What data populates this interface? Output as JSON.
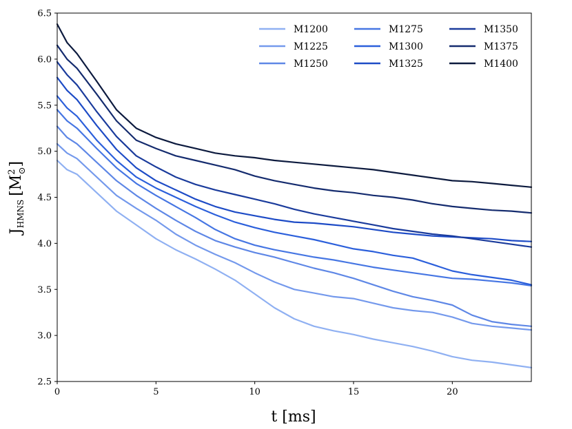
{
  "chart_data": {
    "type": "line",
    "title": "",
    "xlabel": "t [ms]",
    "ylabel_parts": {
      "main": "J",
      "sub": "HMNS",
      "unit_open": "[M",
      "unit_sup": "2",
      "unit_sub": "⊙",
      "unit_close": "]"
    },
    "xlim": [
      0,
      24
    ],
    "ylim": [
      2.5,
      6.5
    ],
    "x_ticks": [
      0,
      5,
      10,
      15,
      20
    ],
    "x_tick_labels": [
      "0",
      "5",
      "10",
      "15",
      "20"
    ],
    "y_ticks": [
      2.5,
      3.0,
      3.5,
      4.0,
      4.5,
      5.0,
      5.5,
      6.0,
      6.5
    ],
    "y_tick_labels": [
      "2.5",
      "3.0",
      "3.5",
      "4.0",
      "4.5",
      "5.0",
      "5.5",
      "6.0",
      "6.5"
    ],
    "grid": false,
    "legend_position": "top-right",
    "legend_columns": 3,
    "x": [
      0,
      0.5,
      1,
      2,
      3,
      4,
      5,
      6,
      7,
      8,
      9,
      10,
      11,
      12,
      13,
      14,
      15,
      16,
      17,
      18,
      19,
      20,
      21,
      22,
      23,
      24
    ],
    "series": [
      {
        "name": "M1200",
        "color": "#8fb0f2",
        "values": [
          4.9,
          4.8,
          4.75,
          4.55,
          4.35,
          4.2,
          4.05,
          3.93,
          3.83,
          3.72,
          3.6,
          3.45,
          3.3,
          3.18,
          3.1,
          3.05,
          3.01,
          2.96,
          2.92,
          2.88,
          2.83,
          2.77,
          2.73,
          2.71,
          2.68,
          2.65
        ]
      },
      {
        "name": "M1225",
        "color": "#7499ec",
        "values": [
          5.08,
          4.98,
          4.92,
          4.72,
          4.52,
          4.38,
          4.25,
          4.1,
          3.98,
          3.88,
          3.79,
          3.68,
          3.58,
          3.5,
          3.46,
          3.42,
          3.4,
          3.35,
          3.3,
          3.27,
          3.25,
          3.2,
          3.13,
          3.1,
          3.08,
          3.06
        ]
      },
      {
        "name": "M1250",
        "color": "#5e87e6",
        "values": [
          5.27,
          5.15,
          5.08,
          4.88,
          4.68,
          4.52,
          4.38,
          4.25,
          4.13,
          4.03,
          3.96,
          3.9,
          3.85,
          3.79,
          3.73,
          3.68,
          3.62,
          3.55,
          3.48,
          3.42,
          3.38,
          3.33,
          3.22,
          3.15,
          3.12,
          3.1
        ]
      },
      {
        "name": "M1275",
        "color": "#4676e3",
        "values": [
          5.45,
          5.33,
          5.25,
          5.03,
          4.82,
          4.65,
          4.52,
          4.4,
          4.28,
          4.15,
          4.05,
          3.98,
          3.93,
          3.89,
          3.85,
          3.82,
          3.78,
          3.74,
          3.71,
          3.68,
          3.65,
          3.62,
          3.61,
          3.59,
          3.57,
          3.54
        ]
      },
      {
        "name": "M1300",
        "color": "#2b5fdb",
        "values": [
          5.6,
          5.47,
          5.38,
          5.12,
          4.9,
          4.72,
          4.6,
          4.5,
          4.4,
          4.31,
          4.23,
          4.17,
          4.12,
          4.08,
          4.04,
          3.99,
          3.94,
          3.91,
          3.87,
          3.84,
          3.77,
          3.7,
          3.66,
          3.63,
          3.6,
          3.55
        ]
      },
      {
        "name": "M1325",
        "color": "#1d4bc6",
        "values": [
          5.8,
          5.66,
          5.56,
          5.28,
          5.02,
          4.82,
          4.68,
          4.58,
          4.48,
          4.4,
          4.34,
          4.3,
          4.26,
          4.23,
          4.22,
          4.2,
          4.18,
          4.15,
          4.12,
          4.1,
          4.08,
          4.07,
          4.06,
          4.05,
          4.03,
          4.02
        ]
      },
      {
        "name": "M1350",
        "color": "#1a3b9c",
        "values": [
          5.97,
          5.83,
          5.72,
          5.43,
          5.16,
          4.95,
          4.83,
          4.72,
          4.64,
          4.58,
          4.53,
          4.48,
          4.43,
          4.37,
          4.32,
          4.28,
          4.24,
          4.2,
          4.16,
          4.13,
          4.1,
          4.08,
          4.05,
          4.02,
          3.99,
          3.96
        ]
      },
      {
        "name": "M1375",
        "color": "#142b6e",
        "values": [
          6.15,
          6.0,
          5.9,
          5.62,
          5.33,
          5.12,
          5.03,
          4.95,
          4.9,
          4.85,
          4.8,
          4.73,
          4.68,
          4.64,
          4.6,
          4.57,
          4.55,
          4.52,
          4.5,
          4.47,
          4.43,
          4.4,
          4.38,
          4.36,
          4.35,
          4.33
        ]
      },
      {
        "name": "M1400",
        "color": "#0c1a3e",
        "values": [
          6.38,
          6.18,
          6.06,
          5.76,
          5.45,
          5.25,
          5.15,
          5.08,
          5.03,
          4.98,
          4.95,
          4.93,
          4.9,
          4.88,
          4.86,
          4.84,
          4.82,
          4.8,
          4.77,
          4.74,
          4.71,
          4.68,
          4.67,
          4.65,
          4.63,
          4.61
        ]
      }
    ]
  }
}
